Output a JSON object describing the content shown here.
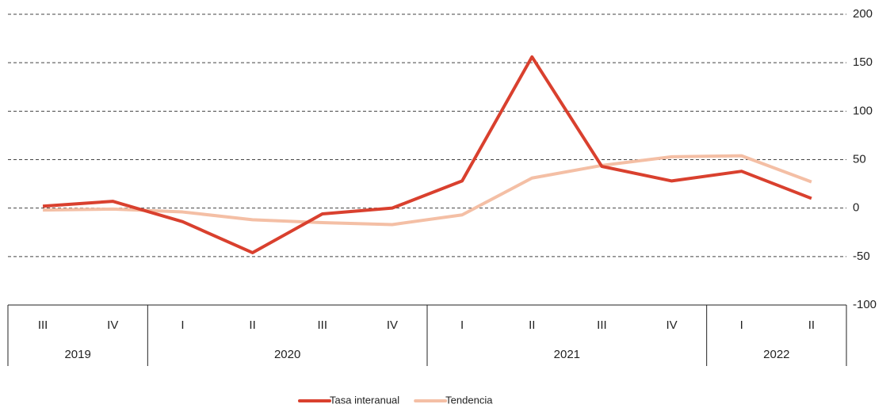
{
  "chart_data": {
    "type": "line",
    "categories": [
      "III",
      "IV",
      "I",
      "II",
      "III",
      "IV",
      "I",
      "II",
      "III",
      "IV",
      "I",
      "II"
    ],
    "year_groups": [
      {
        "label": "2019",
        "count": 2
      },
      {
        "label": "2020",
        "count": 4
      },
      {
        "label": "2021",
        "count": 4
      },
      {
        "label": "2022",
        "count": 2
      }
    ],
    "series": [
      {
        "name": "Tasa interanual",
        "color": "#d9402e",
        "values": [
          2,
          7,
          -14,
          -46,
          -6,
          0,
          28,
          156,
          43,
          28,
          38,
          10
        ]
      },
      {
        "name": "Tendencia",
        "color": "#f4bfa5",
        "values": [
          -2,
          -1,
          -4,
          -12,
          -15,
          -17,
          -7,
          31,
          44,
          53,
          54,
          27
        ]
      }
    ],
    "ylim": [
      -100,
      200
    ],
    "yticks": [
      -100,
      -50,
      0,
      50,
      100,
      150,
      200
    ],
    "grid": true,
    "legend": "bottom"
  }
}
